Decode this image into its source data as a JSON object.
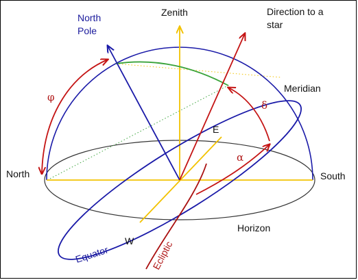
{
  "labels": {
    "zenith": "Zenith",
    "direction_to_star_1": "Direction to a",
    "direction_to_star_2": "star",
    "north_pole_1": "North",
    "north_pole_2": "Pole",
    "meridian": "Meridian",
    "north": "North",
    "south": "South",
    "east": "E",
    "west": "W",
    "horizon": "Horizon",
    "equator": "Equator",
    "ecliptic": "Ecliptic",
    "phi": "φ",
    "delta": "δ",
    "alpha": "α"
  },
  "colors": {
    "meridian_arc": "#1a1aa8",
    "polar_axis": "#1a1aa8",
    "equator": "#1a1aa8",
    "horizon": "#333333",
    "horizon_axes": "#f2c200",
    "zenith_axis": "#f2c200",
    "star_direction": "#c41414",
    "ecliptic": "#aa1010",
    "hour_circle": "#3aa33a",
    "angle_arrows": "#c41414"
  }
}
